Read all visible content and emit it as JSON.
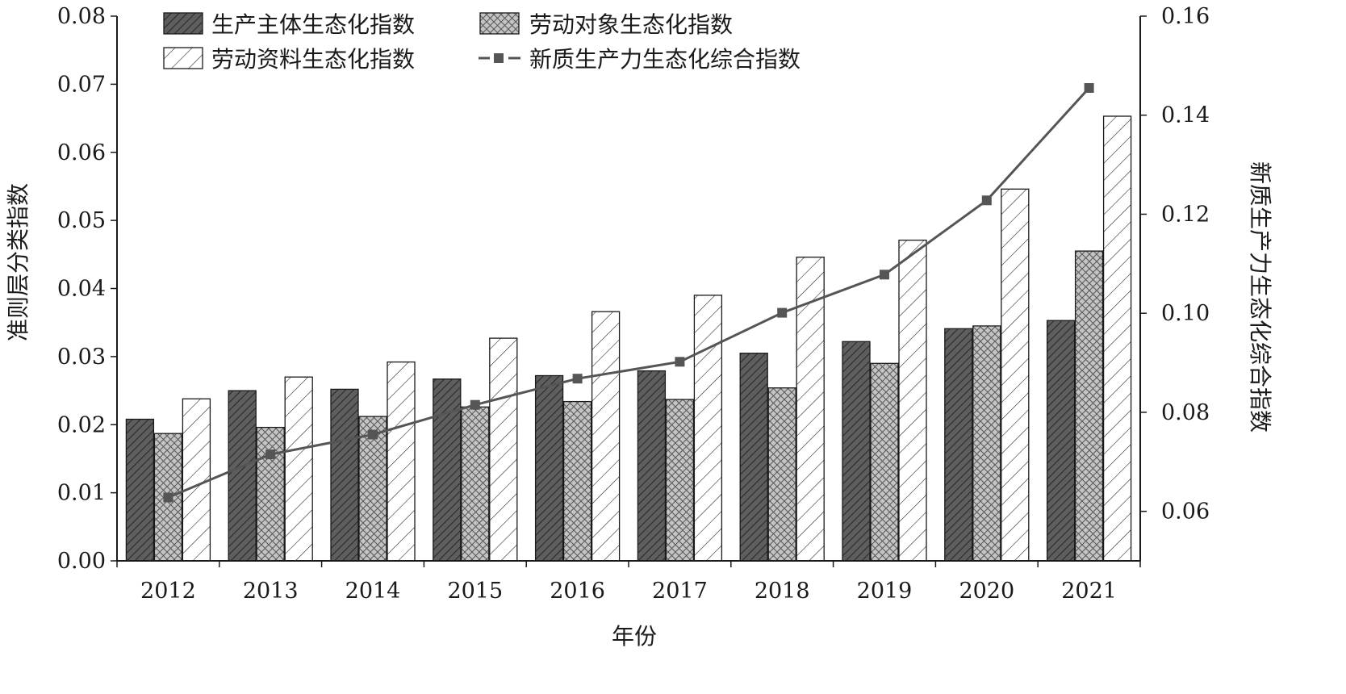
{
  "chart_data": {
    "type": "bar",
    "categories": [
      "2012",
      "2013",
      "2014",
      "2015",
      "2016",
      "2017",
      "2018",
      "2019",
      "2020",
      "2021"
    ],
    "xlabel": "年份",
    "ylabel": "准则层分类指数",
    "y2label": "新质生产力生态化综合指数",
    "ylim": [
      0,
      0.08
    ],
    "y2lim": [
      0.05,
      0.16
    ],
    "yticks": [
      "0.00",
      "0.01",
      "0.02",
      "0.03",
      "0.04",
      "0.05",
      "0.06",
      "0.07",
      "0.08"
    ],
    "y2ticks": [
      "0.06",
      "0.08",
      "0.10",
      "0.12",
      "0.14",
      "0.16"
    ],
    "grid": false,
    "legend_position": "top",
    "series": [
      {
        "name": "生产主体生态化指数",
        "type": "bar",
        "axis": "left",
        "pattern": "dense-diagonal-dark",
        "color": "#5a5a5a",
        "values": [
          0.0208,
          0.025,
          0.0252,
          0.0267,
          0.0272,
          0.0279,
          0.0305,
          0.0322,
          0.0341,
          0.0353
        ]
      },
      {
        "name": "劳动对象生态化指数",
        "type": "bar",
        "axis": "left",
        "pattern": "crosshatch-gray",
        "color": "#a8a8a8",
        "values": [
          0.0187,
          0.0196,
          0.0212,
          0.0226,
          0.0234,
          0.0237,
          0.0254,
          0.029,
          0.0345,
          0.0455
        ]
      },
      {
        "name": "劳动资料生态化指数",
        "type": "bar",
        "axis": "left",
        "pattern": "sparse-diagonal-white",
        "color": "#ffffff",
        "values": [
          0.0238,
          0.027,
          0.0292,
          0.0327,
          0.0366,
          0.039,
          0.0446,
          0.0471,
          0.0546,
          0.0653
        ]
      },
      {
        "name": "新质生产力生态化综合指数",
        "type": "line",
        "axis": "right",
        "color": "#555555",
        "values": [
          0.0628,
          0.0715,
          0.0755,
          0.0815,
          0.0868,
          0.0902,
          0.1001,
          0.1078,
          0.1228,
          0.1455
        ]
      }
    ]
  }
}
